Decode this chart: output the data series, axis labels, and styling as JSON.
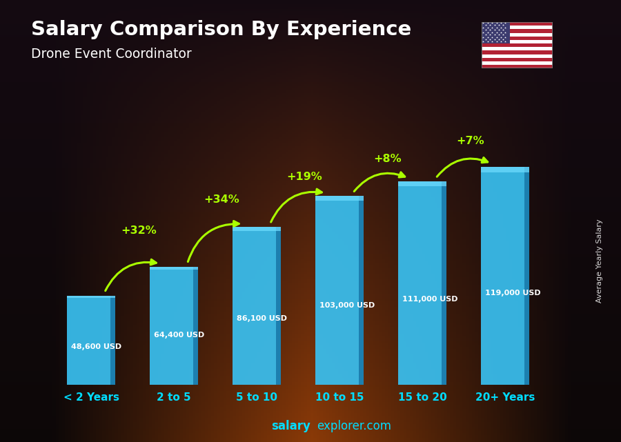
{
  "title": "Salary Comparison By Experience",
  "subtitle": "Drone Event Coordinator",
  "categories": [
    "< 2 Years",
    "2 to 5",
    "5 to 10",
    "10 to 15",
    "15 to 20",
    "20+ Years"
  ],
  "values": [
    48600,
    64400,
    86100,
    103000,
    111000,
    119000
  ],
  "value_labels": [
    "48,600 USD",
    "64,400 USD",
    "86,100 USD",
    "103,000 USD",
    "111,000 USD",
    "119,000 USD"
  ],
  "pct_labels": [
    "+32%",
    "+34%",
    "+19%",
    "+8%",
    "+7%"
  ],
  "bar_color": "#39C0F0",
  "bar_color_dark": "#1A7AAA",
  "pct_color": "#AAFF00",
  "footer_text": "salaryexplorer.com",
  "ylabel_text": "Average Yearly Salary",
  "ylim": [
    0,
    140000
  ],
  "arrow_params": [
    [
      0,
      1,
      "+32%",
      0.58
    ],
    [
      1,
      2,
      "+34%",
      0.7
    ],
    [
      2,
      3,
      "+19%",
      0.79
    ],
    [
      3,
      4,
      "+8%",
      0.86
    ],
    [
      4,
      5,
      "+7%",
      0.93
    ]
  ]
}
